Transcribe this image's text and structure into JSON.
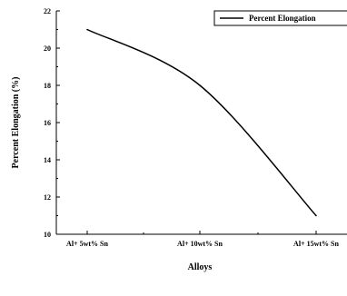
{
  "chart_data": {
    "type": "line",
    "categories": [
      "Al+ 5wt% Sn",
      "Al+ 10wt% Sn",
      "Al+ 15wt% Sn"
    ],
    "series": [
      {
        "name": "Percent Elongation",
        "values": [
          21.0,
          18.0,
          11.0
        ]
      }
    ],
    "xlabel": "Alloys",
    "ylabel": "Percent Elongation (%)",
    "ylim": [
      10,
      22
    ],
    "yticks": [
      10,
      12,
      14,
      16,
      18,
      20,
      22
    ],
    "grid": false,
    "legend_position": "top-right",
    "colors": {
      "line": "#000000",
      "axis": "#000000"
    }
  }
}
